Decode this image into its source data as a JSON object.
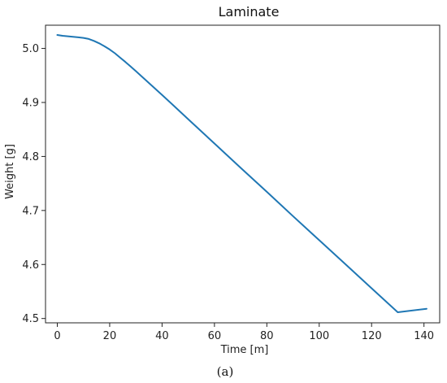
{
  "chart_data": {
    "type": "line",
    "title": "Laminate",
    "xlabel": "Time [m]",
    "ylabel": "Weight [g]",
    "xlim": [
      -4.5,
      146
    ],
    "ylim": [
      4.492,
      5.043
    ],
    "xticks": [
      0,
      20,
      40,
      60,
      80,
      100,
      120,
      140
    ],
    "yticks": [
      4.5,
      4.6,
      4.7,
      4.8,
      4.9,
      5.0
    ],
    "ytick_labels": [
      "4.5",
      "4.6",
      "4.7",
      "4.8",
      "4.9",
      "5.0"
    ],
    "grid": false,
    "legend": "none",
    "series": [
      {
        "color": "#1f77b4",
        "x": [
          0,
          2,
          4,
          6,
          8,
          10,
          12,
          14,
          16,
          18,
          20,
          22,
          24,
          26,
          28,
          30,
          35,
          40,
          45,
          50,
          60,
          70,
          80,
          90,
          100,
          110,
          120,
          130,
          141
        ],
        "y": [
          5.025,
          5.0235,
          5.0225,
          5.0215,
          5.0205,
          5.0195,
          5.0175,
          5.014,
          5.0095,
          5.004,
          4.998,
          4.991,
          4.983,
          4.975,
          4.9665,
          4.958,
          4.936,
          4.914,
          4.8915,
          4.869,
          4.824,
          4.779,
          4.7345,
          4.6895,
          4.645,
          4.6005,
          4.556,
          4.5115,
          4.518
        ]
      }
    ],
    "caption": "(a)"
  }
}
